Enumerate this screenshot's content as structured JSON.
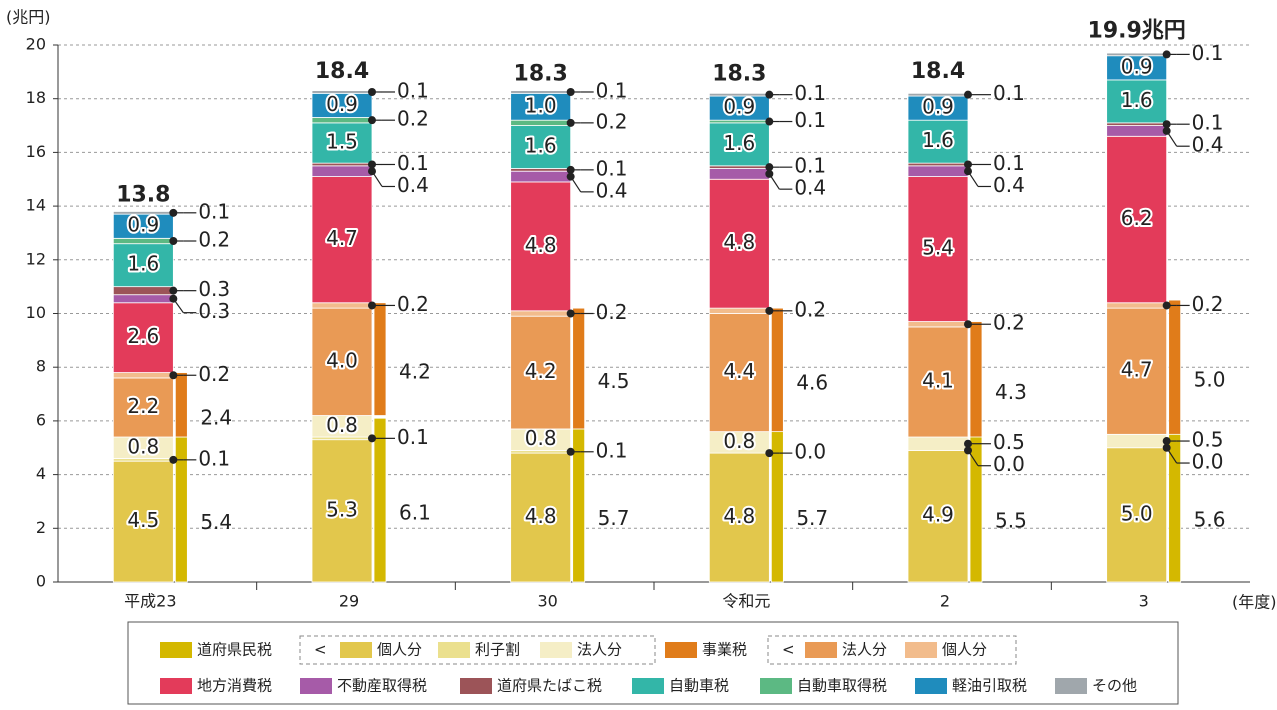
{
  "chart_data": {
    "type": "stacked-bar",
    "y_unit": "(兆円)",
    "x_unit": "(年度)",
    "categories": [
      "平成23",
      "29",
      "30",
      "令和元",
      "2",
      "3"
    ],
    "ylim": [
      0,
      20
    ],
    "yticks": [
      0,
      2,
      4,
      6,
      8,
      10,
      12,
      14,
      16,
      18,
      20
    ],
    "grid": true,
    "series": [
      {
        "name": "個人分",
        "color": "#e2c74c",
        "values": [
          4.5,
          5.3,
          4.8,
          4.8,
          4.9,
          5.0
        ],
        "value_labels": [
          "4.5",
          "5.3",
          "4.8",
          "4.8",
          "4.9",
          "5.0"
        ]
      },
      {
        "name": "利子割",
        "color": "#ebe08e",
        "values": [
          0.1,
          0.1,
          0.1,
          0,
          0,
          0
        ],
        "value_labels": [
          "0.1",
          "0.1",
          "0.1",
          "0.0",
          "0.0",
          "0.0"
        ]
      },
      {
        "name": "法人分",
        "color": "#f5eec6",
        "values": [
          0.8,
          0.8,
          0.8,
          0.8,
          0.5,
          0.5
        ],
        "value_labels": [
          "0.8",
          "0.8",
          "0.8",
          "0.8",
          "0.5",
          "0.5"
        ]
      },
      {
        "name": "法人分",
        "color": "#e99a55",
        "values": [
          2.2,
          4.0,
          4.2,
          4.4,
          4.1,
          4.7
        ],
        "value_labels": [
          "2.2",
          "4.0",
          "4.2",
          "4.4",
          "4.1",
          "4.7"
        ]
      },
      {
        "name": "個人分",
        "color": "#f2bc8c",
        "values": [
          0.2,
          0.2,
          0.2,
          0.2,
          0.2,
          0.2
        ],
        "value_labels": [
          "0.2",
          "0.2",
          "0.2",
          "0.2",
          "0.2",
          "0.2"
        ]
      },
      {
        "name": "地方消費税",
        "color": "#e33b5a",
        "values": [
          2.6,
          4.7,
          4.8,
          4.8,
          5.4,
          6.2
        ],
        "value_labels": [
          "2.6",
          "4.7",
          "4.8",
          "4.8",
          "5.4",
          "6.2"
        ]
      },
      {
        "name": "不動産取得税",
        "color": "#a65ba8",
        "values": [
          0.3,
          0.4,
          0.4,
          0.4,
          0.4,
          0.4
        ],
        "value_labels": [
          "0.3",
          "0.4",
          "0.4",
          "0.4",
          "0.4",
          "0.4"
        ]
      },
      {
        "name": "道府県たばこ税",
        "color": "#9c5458",
        "values": [
          0.3,
          0.1,
          0.1,
          0.1,
          0.1,
          0.1
        ],
        "value_labels": [
          "0.3",
          "0.1",
          "0.1",
          "0.1",
          "0.1",
          "0.1"
        ]
      },
      {
        "name": "自動車税",
        "color": "#33b6a8",
        "values": [
          1.6,
          1.5,
          1.6,
          1.6,
          1.6,
          1.6
        ],
        "value_labels": [
          "1.6",
          "1.5",
          "1.6",
          "1.6",
          "1.6",
          "1.6"
        ]
      },
      {
        "name": "自動車取得税",
        "color": "#5cb983",
        "values": [
          0.2,
          0.2,
          0.2,
          0.1,
          null,
          null
        ],
        "value_labels": [
          "0.2",
          "0.2",
          "0.2",
          "0.1",
          null,
          null
        ]
      },
      {
        "name": "軽油引取税",
        "color": "#1f8cbd",
        "values": [
          0.9,
          0.9,
          1.0,
          0.9,
          0.9,
          0.9
        ],
        "value_labels": [
          "0.9",
          "0.9",
          "1.0",
          "0.9",
          "0.9",
          "0.9"
        ]
      },
      {
        "name": "その他",
        "color": "#a0a7ac",
        "values": [
          0.1,
          0.1,
          0.1,
          0.1,
          0.1,
          0.1
        ],
        "value_labels": [
          "0.1",
          "0.1",
          "0.1",
          "0.1",
          "0.1",
          "0.1"
        ]
      }
    ],
    "group_totals": [
      {
        "name": "道府県民税",
        "color": "#d4b800",
        "values": [
          5.4,
          6.1,
          5.7,
          5.7,
          5.5,
          5.6
        ],
        "value_labels": [
          "5.4",
          "6.1",
          "5.7",
          "5.7",
          "5.5",
          "5.6"
        ]
      },
      {
        "name": "事業税",
        "color": "#e07c1a",
        "values": [
          2.4,
          4.2,
          4.5,
          4.6,
          4.3,
          5.0
        ],
        "value_labels": [
          "2.4",
          "4.2",
          "4.5",
          "4.6",
          "4.3",
          "5.0"
        ]
      }
    ],
    "totals": {
      "values": [
        13.8,
        18.4,
        18.3,
        18.3,
        18.4,
        19.9
      ],
      "value_labels": [
        "13.8",
        "18.4",
        "18.3",
        "18.3",
        "18.4",
        "19.9兆円"
      ]
    }
  }
}
